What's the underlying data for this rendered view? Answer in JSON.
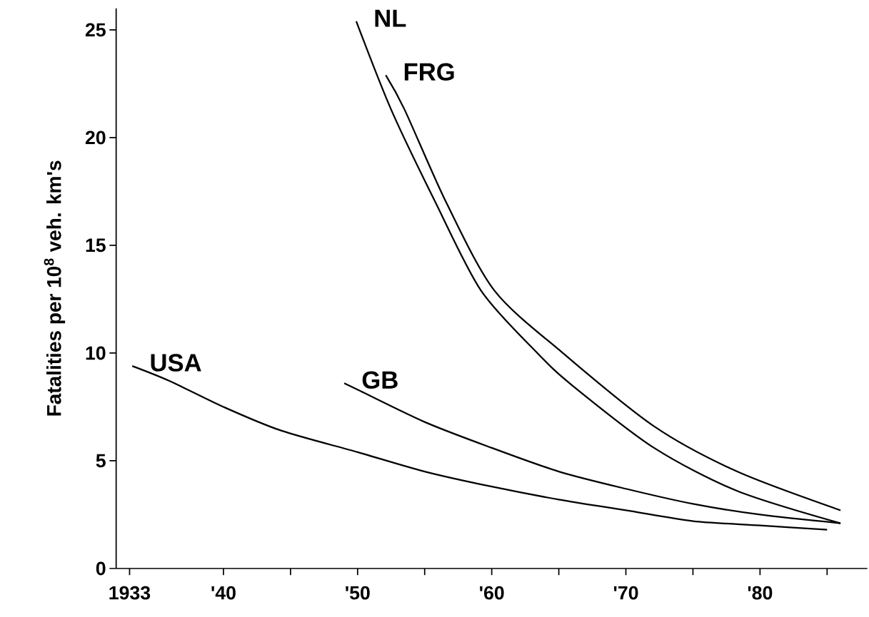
{
  "chart_data": {
    "type": "line",
    "ylabel": "Fatalities per 10$^{8}$ veh. km's",
    "xlim": [
      1932,
      1988
    ],
    "ylim": [
      0,
      26
    ],
    "xticks": [
      1933,
      {
        "value": 1940,
        "label": "'40"
      },
      {
        "value": 1945,
        "label": null
      },
      {
        "value": 1950,
        "label": "'50"
      },
      {
        "value": 1955,
        "label": null
      },
      {
        "value": 1960,
        "label": "'60"
      },
      {
        "value": 1965,
        "label": null
      },
      {
        "value": 1970,
        "label": "'70"
      },
      {
        "value": 1975,
        "label": null
      },
      {
        "value": 1980,
        "label": "'80"
      },
      {
        "value": 1985,
        "label": null
      }
    ],
    "yticks": [
      0,
      5,
      10,
      15,
      20,
      25
    ],
    "series": [
      {
        "name": "USA",
        "color": "#000000",
        "x": [
          1933.2,
          1936,
          1940,
          1944.3,
          1950,
          1955,
          1960,
          1965,
          1970,
          1975,
          1980,
          1985
        ],
        "values": [
          9.4,
          8.7,
          7.5,
          6.4,
          5.4,
          4.5,
          3.8,
          3.2,
          2.7,
          2.2,
          2.0,
          1.8
        ]
      },
      {
        "name": "GB",
        "color": "#000000",
        "x": [
          1949,
          1950,
          1955,
          1960,
          1965,
          1970,
          1975,
          1980,
          1986
        ],
        "values": [
          8.6,
          8.3,
          6.8,
          5.6,
          4.5,
          3.7,
          3.0,
          2.5,
          2.1
        ]
      },
      {
        "name": "NL",
        "color": "#000000",
        "x": [
          1949.9,
          1952.5,
          1955.8,
          1959.2,
          1963.4,
          1966,
          1972.1,
          1978.3,
          1986
        ],
        "values": [
          25.4,
          21.3,
          17.0,
          12.9,
          10.0,
          8.5,
          5.6,
          3.6,
          2.1
        ]
      },
      {
        "name": "FRG",
        "color": "#000000",
        "x": [
          1952.1,
          1953.5,
          1956.6,
          1960.2,
          1965.3,
          1972.1,
          1978.3,
          1986
        ],
        "values": [
          22.9,
          21.3,
          17.0,
          12.9,
          10.0,
          6.6,
          4.5,
          2.7
        ]
      }
    ]
  }
}
